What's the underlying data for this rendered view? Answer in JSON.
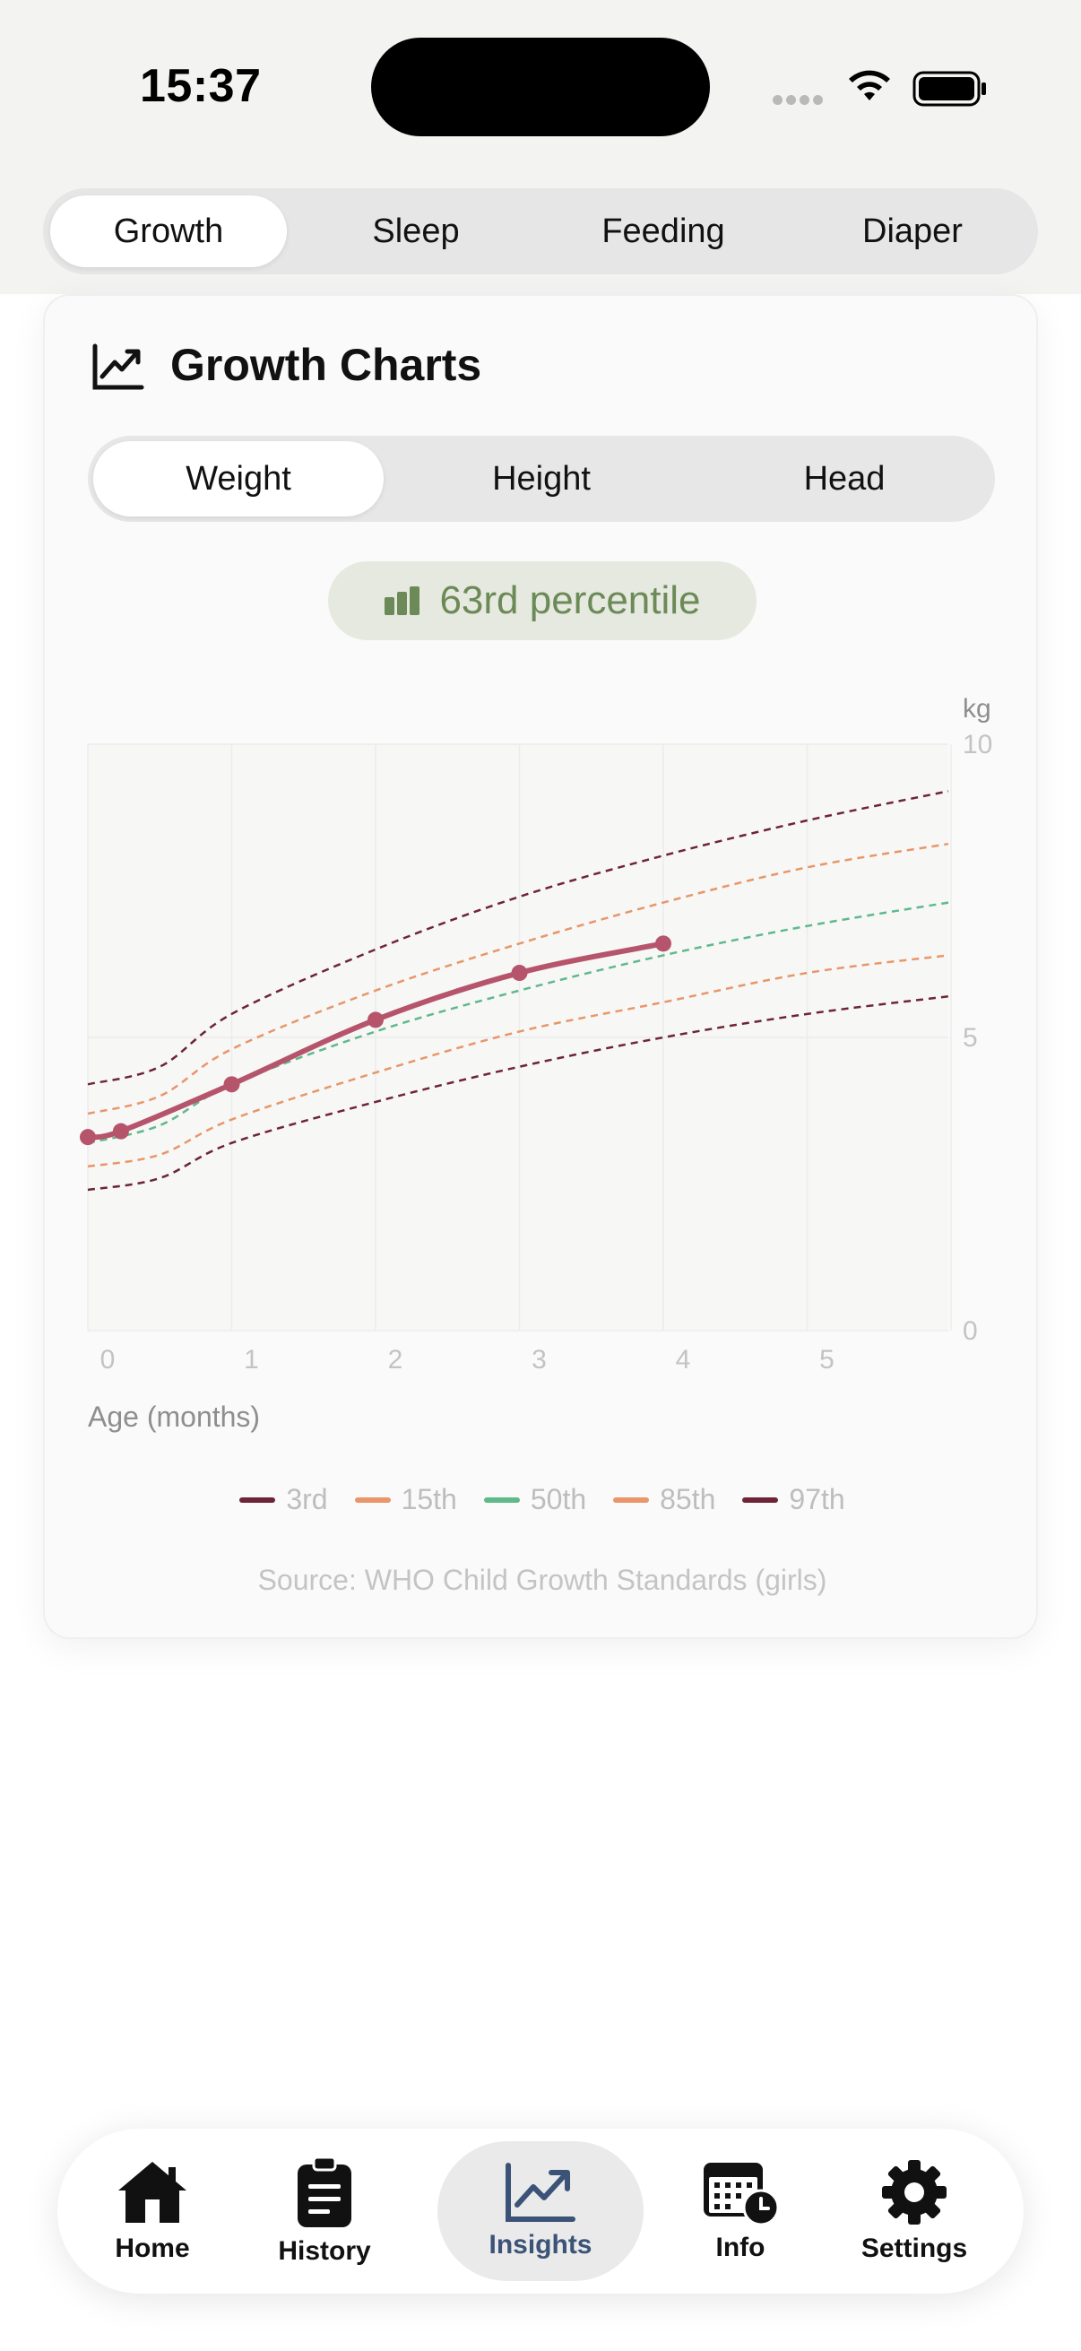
{
  "status_bar": {
    "time": "15:37"
  },
  "top_tabs": [
    {
      "label": "Growth",
      "active": true
    },
    {
      "label": "Sleep",
      "active": false
    },
    {
      "label": "Feeding",
      "active": false
    },
    {
      "label": "Diaper",
      "active": false
    }
  ],
  "card": {
    "title": "Growth Charts",
    "metric_tabs": [
      {
        "label": "Weight",
        "active": true
      },
      {
        "label": "Height",
        "active": false
      },
      {
        "label": "Head",
        "active": false
      }
    ],
    "percentile_badge": "63rd percentile",
    "x_axis_label": "Age (months)",
    "source": "Source: WHO Child Growth Standards (girls)"
  },
  "chart_data": {
    "type": "line",
    "y_unit": "kg",
    "ylim": [
      0,
      10
    ],
    "xlim": [
      0,
      6
    ],
    "yticks": [
      "0",
      "5",
      "10"
    ],
    "xticks": [
      "0",
      "1",
      "2",
      "3",
      "4",
      "5"
    ],
    "grid": true,
    "legend_position": "bottom",
    "percentile_x": [
      0,
      0.5,
      1,
      2,
      3,
      4,
      5,
      6
    ],
    "percentiles": [
      {
        "name": "3rd",
        "color": "#6e2437",
        "values": [
          2.4,
          2.6,
          3.2,
          3.9,
          4.5,
          5.0,
          5.4,
          5.7
        ]
      },
      {
        "name": "15th",
        "color": "#e8966a",
        "values": [
          2.8,
          3.0,
          3.6,
          4.4,
          5.1,
          5.6,
          6.1,
          6.4
        ]
      },
      {
        "name": "50th",
        "color": "#5fb98a",
        "values": [
          3.2,
          3.5,
          4.2,
          5.1,
          5.8,
          6.4,
          6.9,
          7.3
        ]
      },
      {
        "name": "85th",
        "color": "#e8966a",
        "values": [
          3.7,
          4.0,
          4.8,
          5.8,
          6.6,
          7.3,
          7.9,
          8.3
        ]
      },
      {
        "name": "97th",
        "color": "#6e2437",
        "values": [
          4.2,
          4.5,
          5.4,
          6.5,
          7.4,
          8.1,
          8.7,
          9.2
        ]
      }
    ],
    "child": {
      "color": "#b5546b",
      "x": [
        0,
        0.23,
        1,
        2,
        3,
        4
      ],
      "values": [
        3.3,
        3.4,
        4.2,
        5.3,
        6.1,
        6.6
      ]
    }
  },
  "bottom_nav": [
    {
      "label": "Home",
      "icon": "home-icon",
      "active": false
    },
    {
      "label": "History",
      "icon": "clipboard-icon",
      "active": false
    },
    {
      "label": "Insights",
      "icon": "chart-trend-icon",
      "active": true
    },
    {
      "label": "Info",
      "icon": "calendar-clock-icon",
      "active": false
    },
    {
      "label": "Settings",
      "icon": "gear-icon",
      "active": false
    }
  ],
  "colors": {
    "accent": "#3b5377",
    "percentile_text": "#6c8a57",
    "child_line": "#b5546b"
  }
}
